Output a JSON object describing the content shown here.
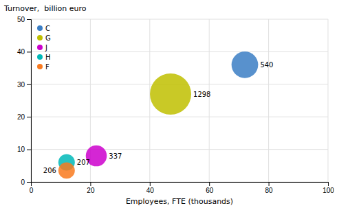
{
  "chart_data": {
    "type": "bubble",
    "x_label": "Employees, FTE (thousands)",
    "y_label": "Turnover,  billion euro",
    "xlim": [
      0,
      100
    ],
    "ylim": [
      0,
      50
    ],
    "xticks": [
      0,
      20,
      40,
      60,
      80,
      100
    ],
    "yticks": [
      0,
      10,
      20,
      30,
      40,
      50
    ],
    "grid": true,
    "legend": "upper-left",
    "data_labels": true,
    "series": [
      {
        "name": "C",
        "color": "#3B7EC4",
        "x": [
          72
        ],
        "values": [
          36
        ],
        "sizes": [
          540
        ]
      },
      {
        "name": "G",
        "color": "#BFBF00",
        "x": [
          47
        ],
        "values": [
          27
        ],
        "sizes": [
          1298
        ]
      },
      {
        "name": "J",
        "color": "#CC00CC",
        "x": [
          22
        ],
        "values": [
          8
        ],
        "sizes": [
          337
        ]
      },
      {
        "name": "H",
        "color": "#00B8B8",
        "x": [
          12
        ],
        "values": [
          6
        ],
        "sizes": [
          207
        ]
      },
      {
        "name": "F",
        "color": "#F97A1F",
        "x": [
          12
        ],
        "values": [
          3.5
        ],
        "sizes": [
          206
        ]
      }
    ]
  }
}
